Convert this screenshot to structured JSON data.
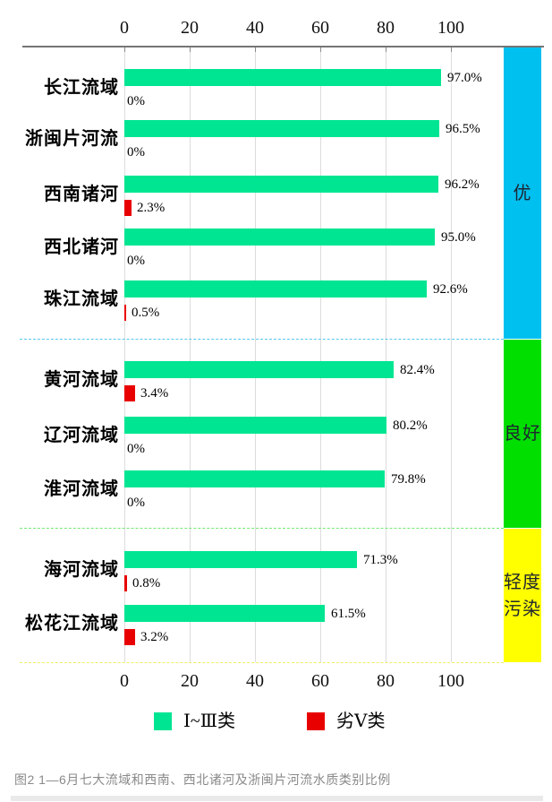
{
  "figure": {
    "caption": "图2  1—6月七大流域和西南、西北诸河及浙闽片河流水质类别比例"
  },
  "colors": {
    "series_good": "#00E592",
    "series_bad": "#E80000",
    "band_excellent": "#00C0F0",
    "band_good": "#00DF00",
    "band_light_pollution": "#FFFF00",
    "divider_excellent": "#55C8F0",
    "divider_good": "#74E874",
    "divider_light_pollution": "#EEEE66",
    "gridline": "#DCDCDC",
    "axis": "#757575"
  },
  "legend": {
    "items": [
      {
        "label": "Ⅰ~Ⅲ类",
        "color_key": "series_good"
      },
      {
        "label": "劣Ⅴ类",
        "color_key": "series_bad"
      }
    ]
  },
  "chart_data": {
    "type": "bar",
    "orientation": "horizontal",
    "title": "",
    "xlabel": "",
    "ylabel": "",
    "xlim": [
      0,
      100
    ],
    "x_ticks": [
      0,
      20,
      40,
      60,
      80,
      100
    ],
    "axes_shown": [
      "top",
      "bottom"
    ],
    "grid": true,
    "unit": "%",
    "series": [
      {
        "name": "Ⅰ~Ⅲ类",
        "color_key": "series_good"
      },
      {
        "name": "劣Ⅴ类",
        "color_key": "series_bad"
      }
    ],
    "sections": [
      {
        "band_label": "优",
        "band_color_key": "band_excellent",
        "divider_color_key": "divider_excellent",
        "rows": [
          {
            "category": "长江流域",
            "good": 97.0,
            "good_label": "97.0%",
            "bad": 0,
            "bad_label": "0%"
          },
          {
            "category": "浙闽片河流",
            "good": 96.5,
            "good_label": "96.5%",
            "bad": 0,
            "bad_label": "0%"
          },
          {
            "category": "西南诸河",
            "good": 96.2,
            "good_label": "96.2%",
            "bad": 2.3,
            "bad_label": "2.3%"
          },
          {
            "category": "西北诸河",
            "good": 95.0,
            "good_label": "95.0%",
            "bad": 0,
            "bad_label": "0%"
          },
          {
            "category": "珠江流域",
            "good": 92.6,
            "good_label": "92.6%",
            "bad": 0.5,
            "bad_label": "0.5%"
          }
        ]
      },
      {
        "band_label": "良好",
        "band_color_key": "band_good",
        "divider_color_key": "divider_good",
        "rows": [
          {
            "category": "黄河流域",
            "good": 82.4,
            "good_label": "82.4%",
            "bad": 3.4,
            "bad_label": "3.4%"
          },
          {
            "category": "辽河流域",
            "good": 80.2,
            "good_label": "80.2%",
            "bad": 0,
            "bad_label": "0%"
          },
          {
            "category": "淮河流域",
            "good": 79.8,
            "good_label": "79.8%",
            "bad": 0,
            "bad_label": "0%"
          }
        ]
      },
      {
        "band_label": "轻度污染",
        "band_color_key": "band_light_pollution",
        "divider_color_key": "divider_light_pollution",
        "rows": [
          {
            "category": "海河流域",
            "good": 71.3,
            "good_label": "71.3%",
            "bad": 0.8,
            "bad_label": "0.8%"
          },
          {
            "category": "松花江流域",
            "good": 61.5,
            "good_label": "61.5%",
            "bad": 3.2,
            "bad_label": "3.2%"
          }
        ]
      }
    ]
  }
}
